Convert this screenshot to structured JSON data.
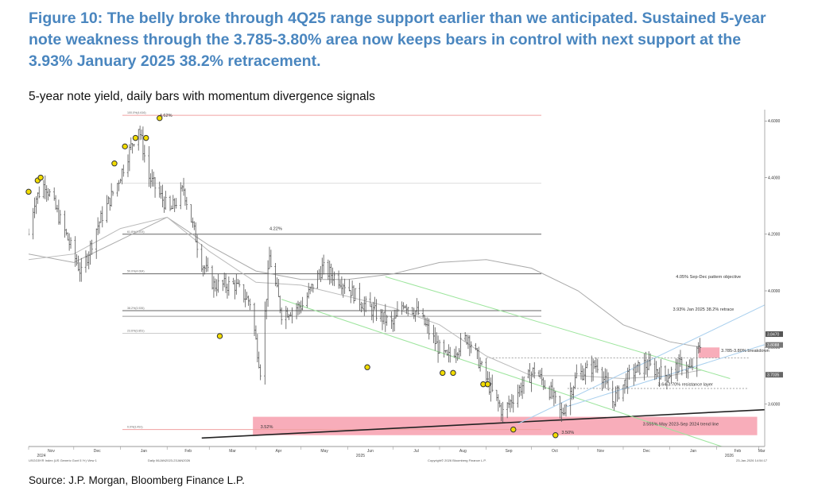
{
  "figure": {
    "title": "Figure 10: The belly broke through 4Q25 range support earlier than we anticipated. Sustained 5-year note weakness through the 3.785-3.80% area now keeps bears in control with next support at the 3.93% January 2025 38.2% retracement.",
    "subtitle": "5-year note yield, daily bars with momentum divergence signals",
    "source": "Source: J.P. Morgan, Bloomberg Finance L.P."
  },
  "chart_data": {
    "type": "bar",
    "style": "daily OHLC bars",
    "xaxis": {
      "months": [
        "Nov",
        "Dec",
        "Jan",
        "Feb",
        "Mar",
        "Apr",
        "May",
        "Jun",
        "Jul",
        "Aug",
        "Sep",
        "Oct",
        "Nov",
        "Dec",
        "Jan",
        "Feb",
        "Mar"
      ],
      "years": [
        {
          "label": "2024",
          "after_month": 0
        },
        {
          "label": "2025",
          "after_month": 7
        },
        {
          "label": "2026",
          "after_month": 15
        }
      ],
      "start": "2024-11-01",
      "end": "2026-03-05"
    },
    "yaxis": {
      "ticks": [
        "4.6000",
        "4.4000",
        "4.2000",
        "4.0000",
        "3.8000",
        "3.6000"
      ],
      "range": [
        3.45,
        4.64
      ],
      "last_values": [
        {
          "label": "3.8470",
          "value": 3.847,
          "color": "#555555"
        },
        {
          "label": "3.8088",
          "value": 3.8088,
          "color": "#777777"
        },
        {
          "label": "3.7035",
          "value": 3.7035,
          "color": "#666666"
        }
      ]
    },
    "moving_averages": [
      {
        "points": [
          [
            "2024-11-01",
            4.13
          ],
          [
            "2024-12-01",
            4.1
          ],
          [
            "2025-01-01",
            4.18
          ],
          [
            "2025-02-01",
            4.26
          ],
          [
            "2025-03-01",
            4.16
          ],
          [
            "2025-04-01",
            4.07
          ],
          [
            "2025-05-01",
            4.04
          ],
          [
            "2025-06-01",
            4.04
          ],
          [
            "2025-07-01",
            4.06
          ],
          [
            "2025-08-01",
            4.1
          ],
          [
            "2025-09-01",
            4.11
          ],
          [
            "2025-10-01",
            4.08
          ],
          [
            "2025-11-01",
            4.0
          ],
          [
            "2025-12-01",
            3.88
          ],
          [
            "2026-01-01",
            3.82
          ],
          [
            "2026-01-22",
            3.8
          ]
        ],
        "color": "#aaaaaa"
      },
      {
        "points": [
          [
            "2024-11-01",
            4.11
          ],
          [
            "2024-12-01",
            4.13
          ],
          [
            "2025-01-01",
            4.22
          ],
          [
            "2025-02-01",
            4.26
          ],
          [
            "2025-03-01",
            4.14
          ],
          [
            "2025-04-01",
            4.03
          ],
          [
            "2025-05-01",
            4.02
          ],
          [
            "2025-06-01",
            3.98
          ],
          [
            "2025-07-01",
            3.94
          ],
          [
            "2025-08-01",
            3.88
          ],
          [
            "2025-09-01",
            3.77
          ],
          [
            "2025-10-01",
            3.7
          ],
          [
            "2025-11-01",
            3.7
          ],
          [
            "2025-12-01",
            3.69
          ],
          [
            "2026-01-01",
            3.7
          ],
          [
            "2026-01-22",
            3.72
          ]
        ],
        "color": "#bbbbbb"
      }
    ],
    "bars_anchor": [
      [
        "2024-11-01",
        4.2
      ],
      [
        "2024-11-05",
        4.32
      ],
      [
        "2024-11-12",
        4.38
      ],
      [
        "2024-11-22",
        4.25
      ],
      [
        "2024-12-06",
        4.06
      ],
      [
        "2024-12-16",
        4.22
      ],
      [
        "2024-12-30",
        4.38
      ],
      [
        "2025-01-06",
        4.48
      ],
      [
        "2025-01-13",
        4.58
      ],
      [
        "2025-01-20",
        4.4
      ],
      [
        "2025-02-03",
        4.28
      ],
      [
        "2025-02-12",
        4.36
      ],
      [
        "2025-02-24",
        4.1
      ],
      [
        "2025-03-04",
        4.02
      ],
      [
        "2025-03-18",
        4.02
      ],
      [
        "2025-03-28",
        3.96
      ],
      [
        "2025-04-04",
        3.72
      ],
      [
        "2025-04-10",
        4.12
      ],
      [
        "2025-04-18",
        3.92
      ],
      [
        "2025-05-02",
        3.95
      ],
      [
        "2025-05-15",
        4.08
      ],
      [
        "2025-05-29",
        4.03
      ],
      [
        "2025-06-10",
        3.96
      ],
      [
        "2025-06-20",
        3.92
      ],
      [
        "2025-07-01",
        3.88
      ],
      [
        "2025-07-08",
        3.96
      ],
      [
        "2025-07-18",
        3.92
      ],
      [
        "2025-07-31",
        3.8
      ],
      [
        "2025-08-06",
        3.76
      ],
      [
        "2025-08-20",
        3.84
      ],
      [
        "2025-09-04",
        3.65
      ],
      [
        "2025-09-12",
        3.57
      ],
      [
        "2025-09-24",
        3.66
      ],
      [
        "2025-10-03",
        3.72
      ],
      [
        "2025-10-14",
        3.64
      ],
      [
        "2025-10-21",
        3.56
      ],
      [
        "2025-10-31",
        3.7
      ],
      [
        "2025-11-14",
        3.74
      ],
      [
        "2025-11-24",
        3.61
      ],
      [
        "2025-12-05",
        3.7
      ],
      [
        "2025-12-15",
        3.74
      ],
      [
        "2025-12-30",
        3.7
      ],
      [
        "2026-01-08",
        3.74
      ],
      [
        "2026-01-15",
        3.72
      ],
      [
        "2026-01-22",
        3.82
      ]
    ],
    "horizontal_levels": [
      {
        "value": 4.62,
        "label": "100.0%(4.616)",
        "color": "#f0a0a0"
      },
      {
        "value": 4.38,
        "label": "",
        "color": "#dddddd"
      },
      {
        "value": 4.2,
        "label": "61.8%(4.203)",
        "color": "#666666"
      },
      {
        "value": 4.06,
        "label": "50.0%(4.064)",
        "color": "#666666"
      },
      {
        "value": 3.93,
        "label": "38.2%(3.926)",
        "color": "#666666"
      },
      {
        "value": 3.91,
        "label": "",
        "color": "#999999"
      },
      {
        "value": 3.85,
        "label": "23.6%(3.851)",
        "color": "#cccccc"
      },
      {
        "value": 3.51,
        "label": "0.0%(3.491)",
        "color": "#f0a0a0"
      }
    ],
    "dotted_levels": [
      {
        "value": 3.763,
        "from": "2025-09-01"
      },
      {
        "value": 3.655,
        "from": "2025-10-25"
      }
    ],
    "zones": [
      {
        "from": "2025-03-30",
        "to": "2026-02-28",
        "low": 3.49,
        "high": 3.555,
        "color": "#f7a4b2"
      },
      {
        "from": "2026-01-20",
        "to": "2026-02-03",
        "low": 3.763,
        "high": 3.8,
        "color": "#f7a4b2"
      }
    ],
    "trend_lines": [
      {
        "points": [
          [
            "2025-02-24",
            3.48
          ],
          [
            "2026-03-05",
            3.58
          ]
        ],
        "color": "#222222"
      },
      {
        "points": [
          [
            "2025-04-18",
            3.97
          ],
          [
            "2026-02-10",
            3.44
          ]
        ],
        "color": "#9de59d"
      },
      {
        "points": [
          [
            "2025-06-26",
            4.05
          ],
          [
            "2026-02-10",
            3.69
          ]
        ],
        "color": "#9de59d"
      },
      {
        "points": [
          [
            "2025-09-22",
            3.53
          ],
          [
            "2026-03-05",
            3.95
          ]
        ],
        "color": "#a8cfee"
      },
      {
        "points": [
          [
            "2025-10-24",
            3.59
          ],
          [
            "2026-03-05",
            3.81
          ]
        ],
        "color": "#a8cfee"
      }
    ],
    "divergence_signals": [
      [
        "2024-11-01",
        4.35
      ],
      [
        "2024-11-07",
        4.39
      ],
      [
        "2024-11-09",
        4.4
      ],
      [
        "2024-12-28",
        4.45
      ],
      [
        "2025-01-04",
        4.51
      ],
      [
        "2025-01-11",
        4.54
      ],
      [
        "2025-01-18",
        4.54
      ],
      [
        "2025-01-27",
        4.61
      ],
      [
        "2025-03-08",
        3.84
      ],
      [
        "2025-06-14",
        3.73
      ],
      [
        "2025-08-03",
        3.71
      ],
      [
        "2025-08-10",
        3.71
      ],
      [
        "2025-08-30",
        3.67
      ],
      [
        "2025-09-02",
        3.67
      ],
      [
        "2025-09-19",
        3.51
      ],
      [
        "2025-10-17",
        3.49
      ]
    ],
    "annotations": [
      {
        "text": "4.62%",
        "x": "2025-01-27",
        "y": 4.62
      },
      {
        "text": "4.22%",
        "x": "2025-04-10",
        "y": 4.22
      },
      {
        "text": "3.52%",
        "x": "2025-04-04",
        "y": 3.52
      },
      {
        "text": "3.50%",
        "x": "2025-10-21",
        "y": 3.5
      },
      {
        "text": "4.05% Sep-Dec pattern objective",
        "x": "2026-01-05",
        "y": 4.05
      },
      {
        "text": "3.93% Jan 2025 38.2% retrace",
        "x": "2026-01-03",
        "y": 3.935
      },
      {
        "text": "3.785-3.80% breakdown",
        "x": "2026-02-04",
        "y": 3.79
      },
      {
        "text": "3.64-3.70% resistance layer",
        "x": "2025-12-24",
        "y": 3.67
      },
      {
        "text": "3.555% May 2023-Sep 2024 trend line",
        "x": "2025-12-14",
        "y": 3.53
      }
    ],
    "footer": {
      "left": "USGG5YR Index (US Generic Govt 5 Yr) View 1",
      "mid": "Daily 06JAN2023-23JAN2026",
      "center": "Copyright© 2026 Bloomberg Finance L.P.",
      "right": "23-Jan-2026 14:54:17"
    }
  }
}
